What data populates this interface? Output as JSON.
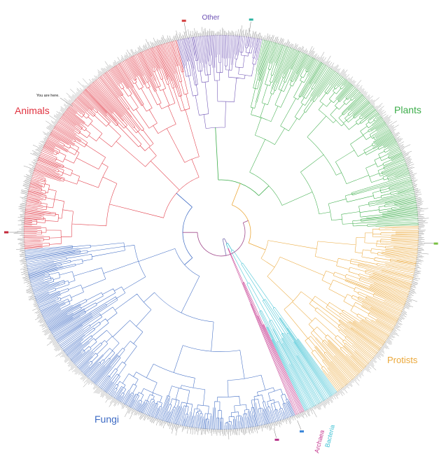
{
  "groups": [
    {
      "id": "other",
      "name": "Other",
      "color": "#6b4fb3",
      "start": -13,
      "end": 12
    },
    {
      "id": "plants",
      "name": "Plants",
      "color": "#3cad4a",
      "start": 12,
      "end": 88
    },
    {
      "id": "protists",
      "name": "Protists",
      "color": "#eba83a",
      "start": 88,
      "end": 144
    },
    {
      "id": "bacteria",
      "name": "Bacteria",
      "color": "#3fc2d4",
      "start": 144,
      "end": 155
    },
    {
      "id": "archaea",
      "name": "Archaea",
      "color": "#c5388f",
      "start": 155,
      "end": 158
    },
    {
      "id": "fungi",
      "name": "Fungi",
      "color": "#3e6bc4",
      "start": 158,
      "end": 265
    },
    {
      "id": "animals",
      "name": "Animals",
      "color": "#e0323f",
      "start": 265,
      "end": 347
    }
  ],
  "note": "You are here.",
  "colors": {
    "leaf_tips": "#8a8a8a",
    "background": "#ffffff"
  }
}
